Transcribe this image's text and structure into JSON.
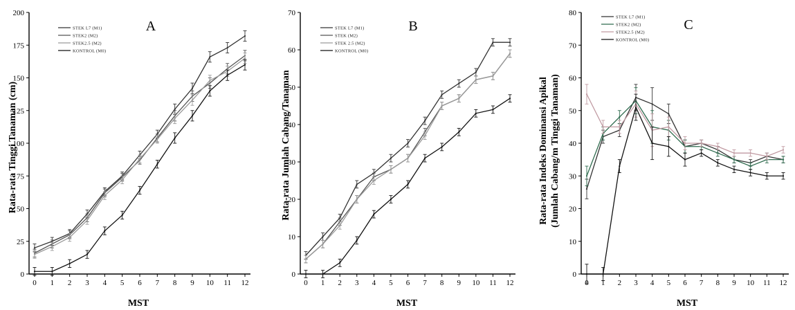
{
  "chart_data": [
    {
      "type": "line",
      "panel_label": "A",
      "xlabel": "MST",
      "ylabel": "Rata-rata Tinggi Tanaman (cm)",
      "x": [
        0,
        1,
        2,
        3,
        4,
        5,
        6,
        7,
        8,
        9,
        10,
        11,
        12
      ],
      "ylim": [
        0,
        200
      ],
      "yticks": [
        0,
        25,
        50,
        75,
        100,
        125,
        150,
        175,
        200
      ],
      "grid": false,
      "legend_position": "top-left",
      "series": [
        {
          "name": "STEK L7 (M1)",
          "color": "#333333",
          "values": [
            20,
            25,
            31,
            46,
            63,
            75,
            91,
            107,
            126,
            142,
            166,
            173,
            182
          ]
        },
        {
          "name": "STEK2 (M2)",
          "color": "#555555",
          "values": [
            16,
            23,
            30,
            43,
            62,
            74,
            87,
            104,
            121,
            136,
            146,
            157,
            167
          ]
        },
        {
          "name": "STEK2.5 (M2)",
          "color": "#9a9a9a",
          "values": [
            15,
            21,
            28,
            41,
            60,
            72,
            88,
            103,
            119,
            133,
            148,
            155,
            165
          ]
        },
        {
          "name": "KONTROL (M0)",
          "color": "#111111",
          "values": [
            2,
            2,
            8,
            15,
            33,
            45,
            64,
            84,
            104,
            121,
            140,
            152,
            160
          ]
        }
      ],
      "errors": [
        3,
        3,
        3,
        3,
        3,
        3,
        3,
        3,
        4,
        4,
        4,
        4,
        4
      ]
    },
    {
      "type": "line",
      "panel_label": "B",
      "xlabel": "MST",
      "ylabel": "Rata-rata Jumlah Cabang/Tanaman",
      "x": [
        0,
        1,
        2,
        3,
        4,
        5,
        6,
        7,
        8,
        9,
        10,
        11,
        12
      ],
      "ylim": [
        0,
        70
      ],
      "yticks": [
        0,
        10,
        20,
        30,
        40,
        50,
        60,
        70
      ],
      "grid": false,
      "legend_position": "top-left",
      "series": [
        {
          "name": "STEK L7 (M1)",
          "color": "#333333",
          "values": [
            5,
            10,
            15,
            24,
            27,
            31,
            35,
            41,
            48,
            51,
            54,
            62,
            62
          ]
        },
        {
          "name": "STEK (M2)",
          "color": "#555555",
          "values": [
            4,
            8,
            14,
            20,
            26,
            28,
            31,
            38,
            45,
            47,
            52,
            53,
            59
          ]
        },
        {
          "name": "STEK 2.5 (M2)",
          "color": "#9a9a9a",
          "values": [
            4,
            8,
            13,
            20,
            25,
            28,
            31,
            37,
            45,
            47,
            52,
            53,
            59
          ]
        },
        {
          "name": "KONTROL (M0)",
          "color": "#111111",
          "values": [
            0,
            0,
            3,
            9,
            16,
            20,
            24,
            31,
            34,
            38,
            43,
            44,
            47
          ]
        }
      ],
      "errors": [
        1,
        1,
        1,
        1,
        1,
        1,
        1,
        1,
        1,
        1,
        1,
        1,
        1
      ]
    },
    {
      "type": "line",
      "panel_label": "C",
      "xlabel": "MST",
      "ylabel_lines": [
        "Rata-rata Indeks Dominansi Apikal",
        "(Jumlah Cabang/m Tinggi Tanaman)"
      ],
      "x": [
        0,
        1,
        2,
        3,
        4,
        5,
        6,
        7,
        8,
        9,
        10,
        11,
        12
      ],
      "ylim": [
        0,
        80
      ],
      "yticks": [
        0,
        10,
        20,
        30,
        40,
        50,
        60,
        70,
        80
      ],
      "grid": false,
      "legend_position": "top-left",
      "series": [
        {
          "name": "STEK L7 (M1)",
          "color": "#333333",
          "values": [
            26,
            42,
            44,
            54,
            52,
            49,
            39,
            40,
            38,
            35,
            34,
            36,
            35
          ]
        },
        {
          "name": "STEK2 (M2)",
          "color": "#2e6b4e",
          "values": [
            30,
            43,
            48,
            53,
            45,
            44,
            39,
            39,
            37,
            35,
            33,
            35,
            35
          ]
        },
        {
          "name": "STEK2.5 (M2)",
          "color": "#c09aa2",
          "values": [
            55,
            45,
            45,
            52,
            44,
            45,
            40,
            40,
            39,
            37,
            37,
            36,
            38
          ]
        },
        {
          "name": "KONTROL (M0)",
          "color": "#111111",
          "values": [
            0,
            0,
            33,
            51,
            40,
            39,
            35,
            37,
            34,
            32,
            31,
            30,
            30
          ]
        }
      ],
      "errors": [
        3,
        2,
        2,
        4,
        5,
        3,
        2,
        1,
        1,
        1,
        1,
        1,
        1
      ]
    }
  ]
}
